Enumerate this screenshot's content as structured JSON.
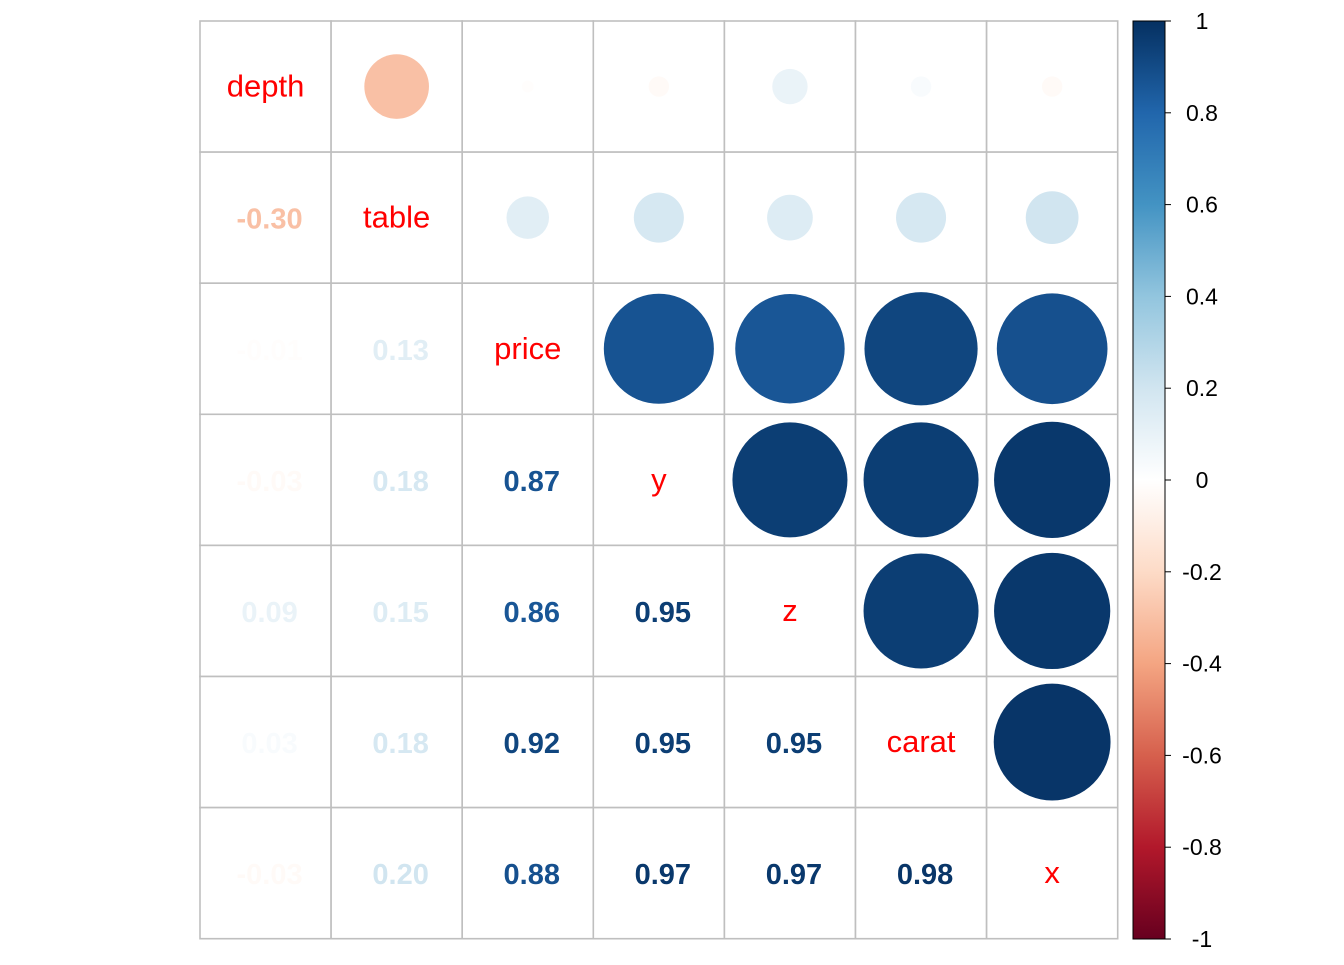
{
  "chart_data": {
    "type": "heatmap",
    "subtype": "correlation-matrix (circles upper, numbers lower, names on diagonal)",
    "variables": [
      "depth",
      "table",
      "price",
      "y",
      "z",
      "carat",
      "x"
    ],
    "matrix": [
      [
        1.0,
        -0.3,
        -0.01,
        -0.03,
        0.09,
        0.03,
        -0.03
      ],
      [
        -0.3,
        1.0,
        0.13,
        0.18,
        0.15,
        0.18,
        0.2
      ],
      [
        -0.01,
        0.13,
        1.0,
        0.87,
        0.86,
        0.92,
        0.88
      ],
      [
        -0.03,
        0.18,
        0.87,
        1.0,
        0.95,
        0.95,
        0.97
      ],
      [
        0.09,
        0.15,
        0.86,
        0.95,
        1.0,
        0.95,
        0.97
      ],
      [
        0.03,
        0.18,
        0.92,
        0.95,
        0.95,
        1.0,
        0.98
      ],
      [
        -0.03,
        0.2,
        0.88,
        0.97,
        0.97,
        0.98,
        1.0
      ]
    ],
    "lower_labels": [
      [
        "",
        "",
        "",
        "",
        "",
        "",
        ""
      ],
      [
        "-0.30",
        "",
        "",
        "",
        "",
        "",
        ""
      ],
      [
        "-0.01",
        "0.13",
        "",
        "",
        "",
        "",
        ""
      ],
      [
        "-0.03",
        "0.18",
        "0.87",
        "",
        "",
        "",
        ""
      ],
      [
        "0.09",
        "0.15",
        "0.86",
        "0.95",
        "",
        "",
        ""
      ],
      [
        "0.03",
        "0.18",
        "0.92",
        "0.95",
        "0.95",
        "",
        ""
      ],
      [
        "-0.03",
        "0.20",
        "0.88",
        "0.97",
        "0.97",
        "0.98",
        ""
      ]
    ],
    "colorbar": {
      "range": [
        -1,
        1
      ],
      "ticks": [
        "1",
        "0.8",
        "0.6",
        "0.4",
        "0.2",
        "0",
        "-0.2",
        "-0.4",
        "-0.6",
        "-0.8",
        "-1"
      ],
      "tick_values": [
        1,
        0.8,
        0.6,
        0.4,
        0.2,
        0,
        -0.2,
        -0.4,
        -0.6,
        -0.8,
        -1
      ],
      "palette": [
        "#67001F",
        "#B2182B",
        "#D6604D",
        "#F4A582",
        "#FDDBC7",
        "#FFFFFF",
        "#D1E5F0",
        "#92C5DE",
        "#4393C3",
        "#2166AC",
        "#053061"
      ]
    },
    "label_color": "#FF0000",
    "grid": true,
    "title": ""
  }
}
